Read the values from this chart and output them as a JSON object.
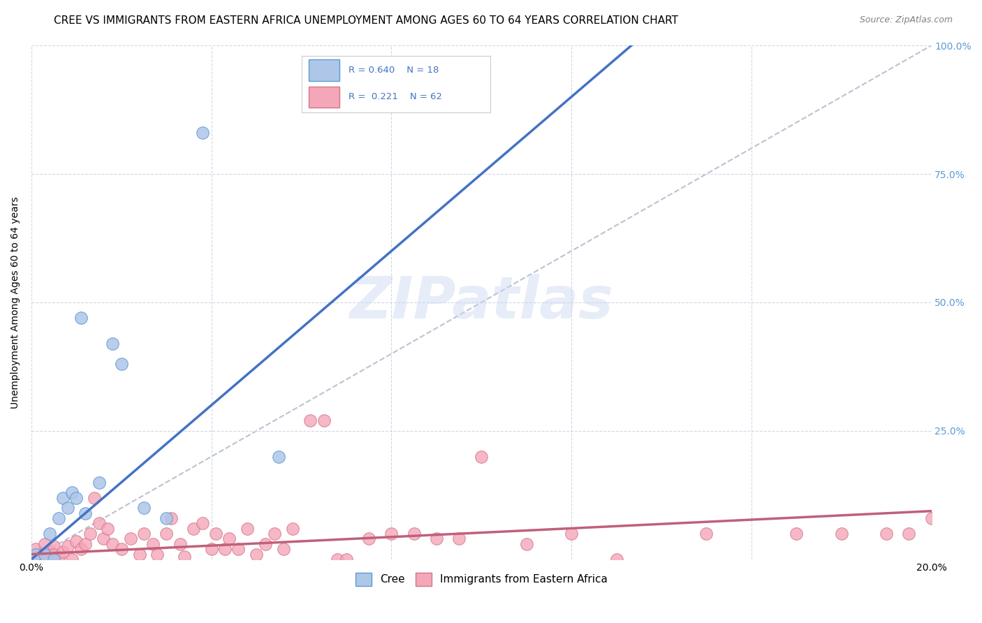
{
  "title": "CREE VS IMMIGRANTS FROM EASTERN AFRICA UNEMPLOYMENT AMONG AGES 60 TO 64 YEARS CORRELATION CHART",
  "source": "Source: ZipAtlas.com",
  "ylabel": "Unemployment Among Ages 60 to 64 years",
  "xlim": [
    0.0,
    0.2
  ],
  "ylim": [
    0.0,
    1.0
  ],
  "x_ticks": [
    0.0,
    0.04,
    0.08,
    0.12,
    0.16,
    0.2
  ],
  "y_ticks": [
    0.0,
    0.25,
    0.5,
    0.75,
    1.0
  ],
  "watermark_text": "ZIPatlas",
  "cree_color": "#aec6e8",
  "cree_edge_color": "#5b9bd5",
  "immigrants_color": "#f4a7b9",
  "immigrants_edge_color": "#d4758a",
  "cree_line_color": "#4472c4",
  "immigrants_line_color": "#c0607a",
  "diagonal_color": "#b0b8c8",
  "background_color": "#ffffff",
  "grid_color": "#d0d8e8",
  "right_tick_color": "#5b9bd5",
  "title_fontsize": 11,
  "axis_fontsize": 10,
  "tick_fontsize": 10,
  "cree_slope": 7.5,
  "cree_intercept": 0.0,
  "immigrants_slope": 0.42,
  "immigrants_intercept": 0.01,
  "cree_points_x": [
    0.001,
    0.003,
    0.004,
    0.005,
    0.006,
    0.007,
    0.008,
    0.009,
    0.01,
    0.011,
    0.012,
    0.015,
    0.018,
    0.02,
    0.025,
    0.03,
    0.038,
    0.055
  ],
  "cree_points_y": [
    0.01,
    0.01,
    0.05,
    0.0,
    0.08,
    0.12,
    0.1,
    0.13,
    0.12,
    0.47,
    0.09,
    0.15,
    0.42,
    0.38,
    0.1,
    0.08,
    0.83,
    0.2
  ],
  "immigrants_points_x": [
    0.0,
    0.001,
    0.002,
    0.003,
    0.004,
    0.005,
    0.005,
    0.006,
    0.007,
    0.008,
    0.009,
    0.01,
    0.011,
    0.012,
    0.013,
    0.014,
    0.015,
    0.016,
    0.017,
    0.018,
    0.02,
    0.022,
    0.024,
    0.025,
    0.027,
    0.028,
    0.03,
    0.031,
    0.033,
    0.034,
    0.036,
    0.038,
    0.04,
    0.041,
    0.043,
    0.044,
    0.046,
    0.048,
    0.05,
    0.052,
    0.054,
    0.056,
    0.058,
    0.062,
    0.065,
    0.068,
    0.07,
    0.075,
    0.08,
    0.085,
    0.09,
    0.095,
    0.1,
    0.11,
    0.12,
    0.13,
    0.15,
    0.17,
    0.18,
    0.19,
    0.195,
    0.2
  ],
  "immigrants_points_y": [
    0.005,
    0.02,
    0.01,
    0.03,
    0.015,
    0.025,
    0.01,
    0.005,
    0.015,
    0.025,
    0.0,
    0.035,
    0.02,
    0.03,
    0.05,
    0.12,
    0.07,
    0.04,
    0.06,
    0.03,
    0.02,
    0.04,
    0.01,
    0.05,
    0.03,
    0.01,
    0.05,
    0.08,
    0.03,
    0.005,
    0.06,
    0.07,
    0.02,
    0.05,
    0.02,
    0.04,
    0.02,
    0.06,
    0.01,
    0.03,
    0.05,
    0.02,
    0.06,
    0.27,
    0.27,
    0.0,
    0.0,
    0.04,
    0.05,
    0.05,
    0.04,
    0.04,
    0.2,
    0.03,
    0.05,
    0.0,
    0.05,
    0.05,
    0.05,
    0.05,
    0.05,
    0.08
  ]
}
